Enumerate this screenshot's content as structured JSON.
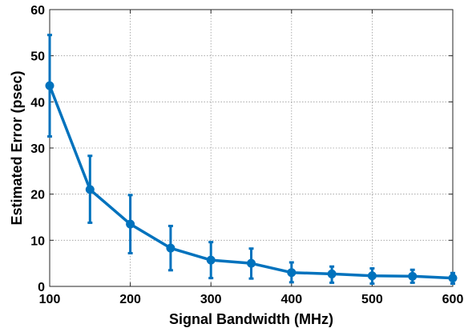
{
  "chart_data": {
    "type": "line",
    "title": "",
    "xlabel": "Signal Bandwidth (MHz)",
    "ylabel": "Estimated Error (psec)",
    "xlim": [
      100,
      600
    ],
    "ylim": [
      0,
      60
    ],
    "xticks": [
      100,
      200,
      300,
      400,
      500,
      600
    ],
    "yticks": [
      0,
      10,
      20,
      30,
      40,
      50,
      60
    ],
    "xtick_labels": [
      "100",
      "200",
      "300",
      "400",
      "500",
      "600"
    ],
    "ytick_labels": [
      "0",
      "10",
      "20",
      "30",
      "40",
      "50",
      "60"
    ],
    "grid": true,
    "grid_style": "dotted",
    "legend": "none",
    "series": [
      {
        "color": "#0072BD",
        "marker": "circle",
        "x": [
          100,
          150,
          200,
          250,
          300,
          350,
          400,
          450,
          500,
          550,
          600
        ],
        "y": [
          43.5,
          21.0,
          13.5,
          8.3,
          5.7,
          5.0,
          3.0,
          2.7,
          2.3,
          2.2,
          1.8
        ],
        "err_low": [
          32.5,
          13.8,
          7.2,
          3.5,
          1.8,
          1.7,
          0.9,
          0.8,
          0.6,
          0.8,
          0.6
        ],
        "err_high": [
          54.5,
          28.3,
          19.8,
          13.1,
          9.6,
          8.2,
          5.2,
          4.3,
          3.9,
          3.6,
          2.9
        ]
      }
    ]
  }
}
